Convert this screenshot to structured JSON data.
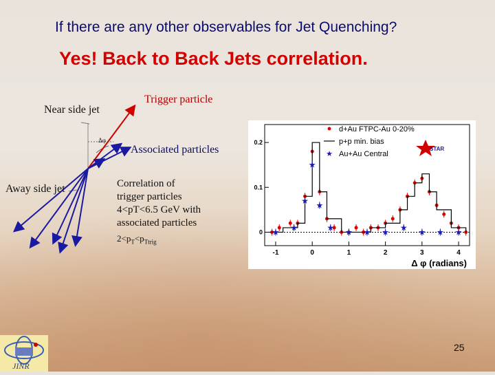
{
  "slide": {
    "title": "If there are any other observables for Jet Quenching?",
    "subtitle": "Yes! Back to Back Jets correlation.",
    "page_number": "25"
  },
  "diagram": {
    "near_side_label": "Near side jet",
    "trigger_label": "Trigger particle",
    "associated_label": "Associated particles",
    "away_side_label": "Away side jet",
    "angle_label": "Δφ",
    "correlation_lines": [
      "Correlation of",
      "trigger particles",
      "4<pT<6.5 GeV with",
      "associated particles"
    ],
    "range_prefix": "2<p",
    "range_sub1": "T",
    "range_mid": "<p",
    "range_sub2": "Ttrig"
  },
  "chart_data": {
    "type": "scatter",
    "xlabel": "Δ φ (radians)",
    "xlim": [
      -1.3,
      4.3
    ],
    "ylim": [
      -0.03,
      0.24
    ],
    "x_ticks": [
      "-1",
      "0",
      "1",
      "2",
      "3",
      "4"
    ],
    "y_ticks": [
      "0",
      "0.1",
      "0.2"
    ],
    "legend_position": "top-right",
    "series": [
      {
        "name": "d+Au FTPC-Au 0-20%",
        "color": "#e00000",
        "marker": "circle",
        "x": [
          -1.1,
          -0.9,
          -0.6,
          -0.4,
          -0.2,
          0.0,
          0.2,
          0.4,
          0.6,
          0.8,
          1.0,
          1.2,
          1.4,
          1.6,
          1.8,
          2.0,
          2.2,
          2.4,
          2.6,
          2.8,
          3.0,
          3.2,
          3.4,
          3.6,
          3.8,
          4.0,
          4.2
        ],
        "y": [
          0.0,
          0.01,
          0.02,
          0.02,
          0.08,
          0.18,
          0.09,
          0.03,
          0.01,
          0.0,
          0.0,
          0.01,
          0.0,
          0.01,
          0.01,
          0.02,
          0.03,
          0.05,
          0.08,
          0.11,
          0.12,
          0.09,
          0.06,
          0.04,
          0.02,
          0.01,
          0.0
        ]
      },
      {
        "name": "p+p min. bias",
        "color": "#000000",
        "marker": "line",
        "x": [
          -1.2,
          -0.8,
          -0.4,
          -0.2,
          0.0,
          0.2,
          0.4,
          0.8,
          1.2,
          1.6,
          2.0,
          2.4,
          2.6,
          2.8,
          3.0,
          3.2,
          3.4,
          3.8,
          4.2
        ],
        "y": [
          0.0,
          0.01,
          0.02,
          0.08,
          0.2,
          0.09,
          0.03,
          0.0,
          0.0,
          0.01,
          0.02,
          0.05,
          0.08,
          0.11,
          0.13,
          0.09,
          0.05,
          0.01,
          0.0
        ]
      },
      {
        "name": "Au+Au Central",
        "color": "#1a1ab4",
        "marker": "star",
        "x": [
          -1.0,
          -0.5,
          -0.2,
          0.0,
          0.2,
          0.5,
          1.0,
          1.5,
          2.0,
          2.5,
          3.0,
          3.5,
          4.0
        ],
        "y": [
          0.0,
          0.01,
          0.07,
          0.15,
          0.06,
          0.01,
          0.0,
          0.0,
          0.0,
          0.01,
          0.0,
          0.0,
          0.0
        ]
      }
    ]
  }
}
